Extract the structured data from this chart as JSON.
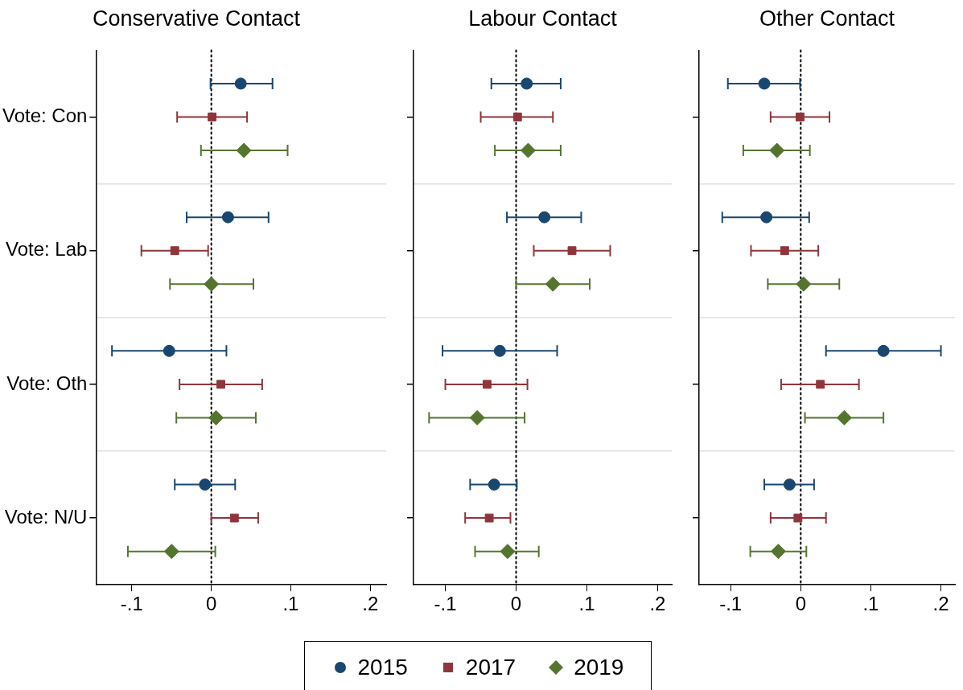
{
  "chart_data": [
    {
      "type": "scatter",
      "title": "Conservative Contact",
      "orientation": "horizontal",
      "categories": [
        "Vote: Con",
        "Vote: Lab",
        "Vote: Oth",
        "Vote: N/U"
      ],
      "series": [
        {
          "name": "2015",
          "color": "#1a476f",
          "marker": "circle",
          "values": [
            0.037,
            0.021,
            -0.053,
            -0.008
          ],
          "errors": [
            [
              -0.001,
              0.077
            ],
            [
              -0.031,
              0.072
            ],
            [
              -0.125,
              0.019
            ],
            [
              -0.046,
              0.03
            ]
          ]
        },
        {
          "name": "2017",
          "color": "#90353b",
          "marker": "square",
          "values": [
            0.001,
            -0.046,
            0.012,
            0.029
          ],
          "errors": [
            [
              -0.043,
              0.045
            ],
            [
              -0.088,
              -0.004
            ],
            [
              -0.04,
              0.064
            ],
            [
              0.0,
              0.059
            ]
          ]
        },
        {
          "name": "2019",
          "color": "#55752f",
          "marker": "diamond",
          "values": [
            0.041,
            0.0,
            0.006,
            -0.05
          ],
          "errors": [
            [
              -0.013,
              0.096
            ],
            [
              -0.052,
              0.053
            ],
            [
              -0.044,
              0.056
            ],
            [
              -0.105,
              0.005
            ]
          ]
        }
      ],
      "xlim": [
        -0.145,
        0.22
      ],
      "xticks": [
        {
          "value": -0.1,
          "label": "-.1"
        },
        {
          "value": 0,
          "label": "0"
        },
        {
          "value": 0.1,
          "label": ".1"
        },
        {
          "value": 0.2,
          "label": ".2"
        }
      ],
      "grid": "y",
      "ref_lines": [
        {
          "axis": "x",
          "value": 0,
          "line_style": "dotted",
          "color": "#000000"
        }
      ],
      "legend": "bottom"
    },
    {
      "type": "scatter",
      "title": "Labour Contact",
      "orientation": "horizontal",
      "categories": [
        null,
        null,
        null,
        null
      ],
      "xticks": [
        {
          "value": -0.1,
          "label": "-.1"
        },
        {
          "value": 0,
          "label": "0"
        },
        {
          "value": 0.1,
          "label": ".1"
        },
        {
          "value": 0.2,
          "label": ".2"
        }
      ],
      "series": [
        {
          "name": "2015",
          "color": "#1a476f",
          "marker": "circle",
          "values": [
            0.015,
            0.04,
            -0.023,
            -0.031
          ],
          "errors": [
            [
              -0.035,
              0.063
            ],
            [
              -0.013,
              0.092
            ],
            [
              -0.104,
              0.058
            ],
            [
              -0.065,
              0.001
            ]
          ]
        },
        {
          "name": "2017",
          "color": "#90353b",
          "marker": "square",
          "values": [
            0.002,
            0.079,
            -0.041,
            -0.038
          ],
          "errors": [
            [
              -0.05,
              0.052
            ],
            [
              0.025,
              0.133
            ],
            [
              -0.1,
              0.016
            ],
            [
              -0.072,
              -0.008
            ]
          ]
        },
        {
          "name": "2019",
          "color": "#55752f",
          "marker": "diamond",
          "values": [
            0.017,
            0.052,
            -0.055,
            -0.012
          ],
          "errors": [
            [
              -0.03,
              0.063
            ],
            [
              0.0,
              0.104
            ],
            [
              -0.123,
              0.012
            ],
            [
              -0.058,
              0.032
            ]
          ]
        }
      ],
      "xlim": [
        -0.145,
        0.22
      ],
      "grid": "y",
      "tick_labels": "x",
      "ref_lines": [
        {
          "axis": "x",
          "value": 0,
          "line_style": "dotted",
          "color": "#000000"
        }
      ]
    },
    {
      "type": "scatter",
      "title": "Other Contact",
      "orientation": "horizontal",
      "categories": [
        null,
        null,
        null,
        null
      ],
      "xticks": [
        {
          "value": -0.1,
          "label": "-.1"
        },
        {
          "value": 0,
          "label": "0"
        },
        {
          "value": 0.1,
          "label": ".1"
        },
        {
          "value": 0.2,
          "label": ".2"
        }
      ],
      "series": [
        {
          "name": "2015",
          "color": "#1a476f",
          "marker": "circle",
          "values": [
            -0.052,
            -0.049,
            0.118,
            -0.016
          ],
          "errors": [
            [
              -0.104,
              -0.001
            ],
            [
              -0.112,
              0.012
            ],
            [
              0.036,
              0.2
            ],
            [
              -0.052,
              0.019
            ]
          ]
        },
        {
          "name": "2017",
          "color": "#90353b",
          "marker": "square",
          "values": [
            -0.001,
            -0.023,
            0.028,
            -0.004
          ],
          "errors": [
            [
              -0.043,
              0.041
            ],
            [
              -0.071,
              0.025
            ],
            [
              -0.028,
              0.083
            ],
            [
              -0.043,
              0.036
            ]
          ]
        },
        {
          "name": "2019",
          "color": "#55752f",
          "marker": "diamond",
          "values": [
            -0.034,
            0.004,
            0.062,
            -0.032
          ],
          "errors": [
            [
              -0.082,
              0.013
            ],
            [
              -0.047,
              0.055
            ],
            [
              0.006,
              0.118
            ],
            [
              -0.072,
              0.008
            ]
          ]
        }
      ],
      "xlim": [
        -0.145,
        0.22
      ],
      "grid": "y",
      "tick_labels": "x",
      "ref_lines": [
        {
          "axis": "x",
          "value": 0,
          "line_style": "dotted",
          "color": "#000000"
        }
      ]
    }
  ]
}
